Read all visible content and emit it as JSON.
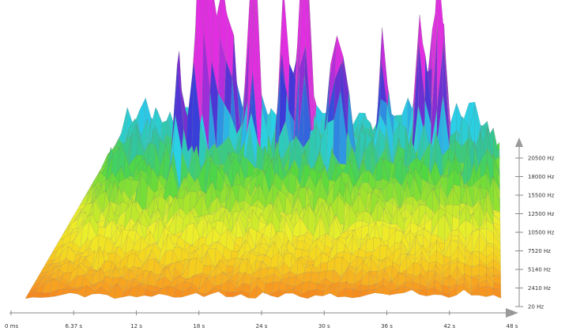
{
  "chart_data": {
    "type": "surface-3d-spectrogram",
    "title": "",
    "x_axis": {
      "label": "",
      "ticks": [
        "0 ms",
        "6.37 s",
        "12 s",
        "18 s",
        "24 s",
        "30 s",
        "36 s",
        "42 s",
        "48 s"
      ],
      "range": [
        0,
        48
      ],
      "unit": "s"
    },
    "y_axis": {
      "label": "",
      "ticks": [
        "20 Hz",
        "2410 Hz",
        "5140 Hz",
        "7520 Hz",
        "10500 Hz",
        "12500 Hz",
        "15500 Hz",
        "18000 Hz",
        "20500 Hz"
      ],
      "range": [
        20,
        20500
      ],
      "unit": "Hz"
    },
    "z_axis": {
      "label": "",
      "ticks": []
    },
    "palette": [
      "#e8331e",
      "#f26a1b",
      "#f7a020",
      "#f5d51f",
      "#ecef2a",
      "#a6e42c",
      "#50d840",
      "#32c59a",
      "#2ad0e6",
      "#2f7fe0",
      "#3a3ad8",
      "#7a2ed2",
      "#e02ee0"
    ],
    "peaks": [
      {
        "time_s": 10.5,
        "freq_hz": 15500,
        "level": 0.62
      },
      {
        "time_s": 12.0,
        "freq_hz": 17500,
        "level": 0.88
      },
      {
        "time_s": 13.0,
        "freq_hz": 18500,
        "level": 0.95
      },
      {
        "time_s": 14.0,
        "freq_hz": 19500,
        "level": 0.9
      },
      {
        "time_s": 15.3,
        "freq_hz": 19500,
        "level": 0.82
      },
      {
        "time_s": 17.8,
        "freq_hz": 19000,
        "level": 0.93
      },
      {
        "time_s": 18.8,
        "freq_hz": 18000,
        "level": 0.86
      },
      {
        "time_s": 22.0,
        "freq_hz": 19500,
        "level": 0.9
      },
      {
        "time_s": 23.8,
        "freq_hz": 20000,
        "level": 1.0
      },
      {
        "time_s": 24.6,
        "freq_hz": 19000,
        "level": 0.9
      },
      {
        "time_s": 28.2,
        "freq_hz": 18000,
        "level": 0.78
      },
      {
        "time_s": 29.5,
        "freq_hz": 17500,
        "level": 0.6
      },
      {
        "time_s": 34.0,
        "freq_hz": 19000,
        "level": 0.6
      },
      {
        "time_s": 38.5,
        "freq_hz": 19500,
        "level": 0.84
      },
      {
        "time_s": 40.2,
        "freq_hz": 20500,
        "level": 0.95
      },
      {
        "time_s": 41.0,
        "freq_hz": 19000,
        "level": 0.7
      }
    ]
  }
}
